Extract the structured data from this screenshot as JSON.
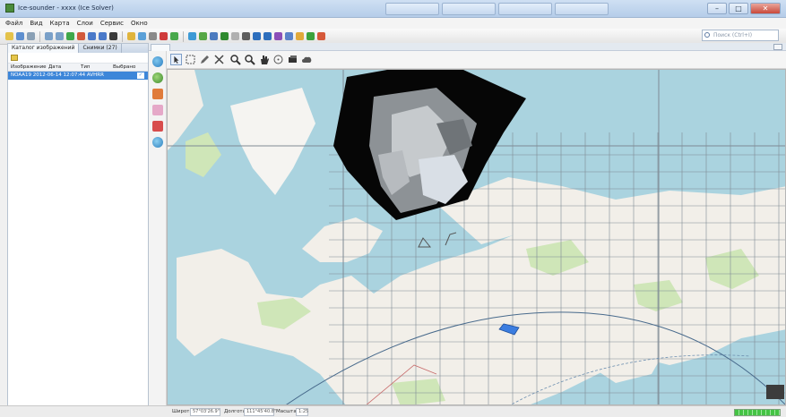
{
  "window": {
    "title": "Ice-sounder - xxxx (Ice Solver)",
    "controls": {
      "minimize": "–",
      "maximize": "□",
      "close": "✕"
    }
  },
  "menu": [
    "Файл",
    "Вид",
    "Карта",
    "Слои",
    "Сервис",
    "Окно"
  ],
  "search": {
    "placeholder": "Поиск (Ctrl+I)"
  },
  "left_panel": {
    "tabs": [
      "Каталог изображений",
      "Снимки (27)"
    ],
    "columns": [
      "Изображение",
      "Дата",
      "Тип",
      "Выбрано"
    ],
    "rows": [
      {
        "name": "NOAA19 2012-06-14 12:07:44 AVHRR",
        "tag": "✓"
      }
    ]
  },
  "status": {
    "lat_label": "Широта:",
    "lat_value": "57°03'26.9\"",
    "lon_label": "Долгота:",
    "lon_value": "111°45'40.8\"",
    "scale_label": "Масштаб:",
    "scale_value": "1:25",
    "progress": 1.0
  },
  "colors": {
    "accent": "#3d86d9",
    "water": "#aad3df",
    "land": "#f2efe9",
    "green": "#cfe6b8"
  }
}
